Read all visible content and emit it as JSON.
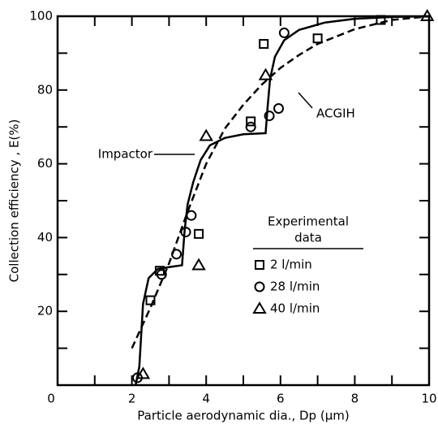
{
  "chart_data": {
    "type": "scatter",
    "xlabel": "Particle aerodynamic dia., Dp (μm)",
    "ylabel": "Collection efficiency , E(%)",
    "xlim": [
      0,
      10
    ],
    "ylim": [
      0,
      100
    ],
    "xticks": [
      0,
      2,
      4,
      6,
      8,
      10
    ],
    "xticks_minor": [
      1,
      3,
      5,
      7,
      9
    ],
    "yticks": [
      20,
      40,
      60,
      80,
      100
    ],
    "yticks_minor": [
      10,
      30,
      50,
      70,
      90
    ],
    "legend_title": [
      "Experimental",
      "data"
    ],
    "series": [
      {
        "name": "2 l/min",
        "marker": "square",
        "color": "#000000",
        "x": [
          2.5,
          2.75,
          3.8,
          5.2,
          5.55,
          7.0,
          8.7
        ],
        "values": [
          23,
          31,
          41,
          71.5,
          92.5,
          94,
          99
        ]
      },
      {
        "name": "28 l/min",
        "marker": "circle",
        "color": "#000000",
        "x": [
          2.15,
          2.8,
          3.2,
          3.45,
          3.6,
          5.2,
          5.7,
          5.95,
          6.1
        ],
        "values": [
          2,
          30,
          35.5,
          41.5,
          46,
          70,
          73,
          75,
          95.5
        ]
      },
      {
        "name": "40 l/min",
        "marker": "triangle",
        "color": "#000000",
        "x": [
          2.3,
          3.8,
          4.0,
          5.6,
          9.95
        ],
        "values": [
          3,
          32.5,
          67.5,
          84,
          100
        ]
      },
      {
        "name": "Impactor",
        "line": "solid",
        "color": "#000000",
        "x": [
          2.1,
          2.2,
          2.3,
          2.45,
          2.7,
          3.0,
          3.35,
          3.42,
          3.5,
          3.65,
          3.85,
          4.1,
          4.5,
          5.0,
          5.6,
          5.65,
          5.72,
          5.85,
          6.1,
          6.5,
          7.2,
          8.0,
          9.0,
          10.0
        ],
        "values": [
          0,
          5,
          22,
          29,
          31.5,
          32,
          32.5,
          42,
          49,
          55,
          61,
          65,
          67,
          68,
          68.3,
          75,
          83,
          89,
          93.5,
          96.3,
          98.3,
          99.3,
          99.8,
          100
        ]
      },
      {
        "name": "ACGIH",
        "line": "dashed",
        "color": "#000000",
        "x": [
          2.0,
          2.5,
          3.0,
          3.5,
          4.0,
          4.5,
          5.0,
          5.5,
          6.0,
          6.5,
          7.0,
          8.0,
          9.0,
          10.0
        ],
        "values": [
          10,
          21,
          33,
          47,
          60,
          69.5,
          76,
          81.5,
          86,
          89.5,
          92.5,
          96.5,
          99,
          100
        ]
      }
    ]
  }
}
